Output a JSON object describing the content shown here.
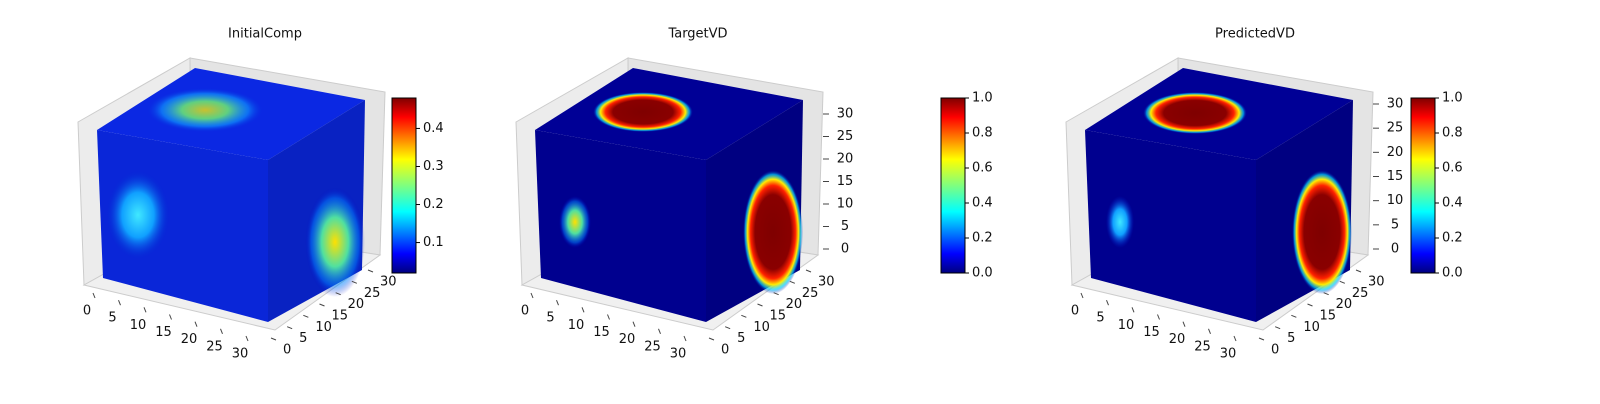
{
  "chart_data": [
    {
      "type": "voxel3d",
      "title": "InitialComp",
      "colormap": "jet",
      "xticks": [
        0,
        5,
        10,
        15,
        20,
        25,
        30
      ],
      "yticks": [
        0,
        5,
        10,
        15,
        20,
        25,
        30
      ],
      "clim": [
        0.02,
        0.48
      ],
      "cticks": [
        0.1,
        0.2,
        0.3,
        0.4
      ]
    },
    {
      "type": "voxel3d",
      "title": "TargetVD",
      "colormap": "jet",
      "xticks": [
        0,
        5,
        10,
        15,
        20,
        25,
        30
      ],
      "yticks": [
        0,
        5,
        10,
        15,
        20,
        25,
        30
      ],
      "zticks": [
        0,
        5,
        10,
        15,
        20,
        25,
        30
      ],
      "clim": [
        0,
        1
      ],
      "cticks": [
        {
          "value": 0,
          "label": "0.0"
        },
        0.2,
        0.4,
        0.6,
        0.8,
        {
          "value": 1,
          "label": "1.0"
        }
      ]
    },
    {
      "type": "voxel3d",
      "title": "PredictedVD",
      "colormap": "jet",
      "xticks": [
        0,
        5,
        10,
        15,
        20,
        25,
        30
      ],
      "yticks": [
        0,
        5,
        10,
        15,
        20,
        25,
        30
      ],
      "zticks": [
        0,
        5,
        10,
        15,
        20,
        25,
        30
      ],
      "clim": [
        0,
        1
      ],
      "cticks": [
        {
          "value": 0,
          "label": "0.0"
        },
        0.2,
        0.4,
        0.6,
        0.8,
        {
          "value": 1,
          "label": "1.0"
        }
      ]
    }
  ]
}
